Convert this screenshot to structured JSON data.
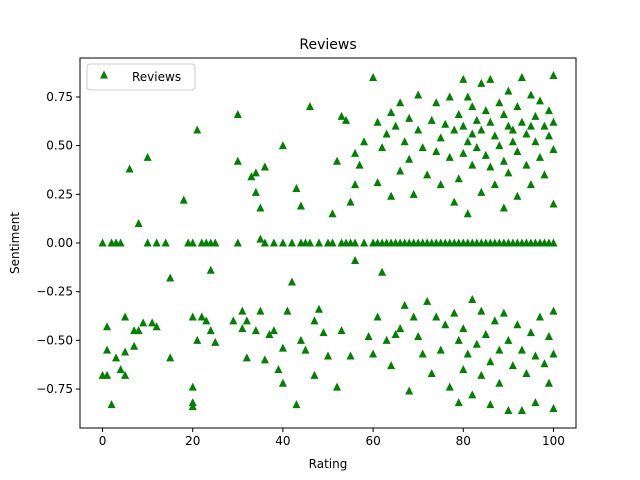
{
  "chart_data": {
    "type": "scatter",
    "title": "Reviews",
    "xlabel": "Rating",
    "ylabel": "Sentiment",
    "xlim": [
      -5,
      105
    ],
    "ylim": [
      -0.95,
      0.95
    ],
    "x_ticks": [
      0,
      20,
      40,
      60,
      80,
      100
    ],
    "x_tick_labels": [
      "0",
      "20",
      "40",
      "60",
      "80",
      "100"
    ],
    "y_ticks": [
      -0.75,
      -0.5,
      -0.25,
      0.0,
      0.25,
      0.5,
      0.75
    ],
    "y_tick_labels": [
      "−0.75",
      "−0.50",
      "−0.25",
      "0.00",
      "0.25",
      "0.50",
      "0.75"
    ],
    "grid": false,
    "legend": {
      "placement": "top-left",
      "entries": [
        "Reviews"
      ]
    },
    "marker": "triangle",
    "color": "#008000",
    "series": [
      {
        "name": "Reviews",
        "points": [
          [
            0,
            0
          ],
          [
            0,
            -0.68
          ],
          [
            1,
            -0.43
          ],
          [
            1,
            -0.55
          ],
          [
            1,
            -0.68
          ],
          [
            2,
            0
          ],
          [
            2,
            -0.83
          ],
          [
            3,
            0
          ],
          [
            3,
            -0.59
          ],
          [
            4,
            0
          ],
          [
            4,
            -0.65
          ],
          [
            5,
            -0.38
          ],
          [
            5,
            -0.56
          ],
          [
            5,
            -0.68
          ],
          [
            6,
            0.38
          ],
          [
            7,
            -0.45
          ],
          [
            7,
            -0.53
          ],
          [
            8,
            0.1
          ],
          [
            8,
            -0.45
          ],
          [
            9,
            -0.41
          ],
          [
            10,
            0.44
          ],
          [
            10,
            0
          ],
          [
            11,
            -0.41
          ],
          [
            12,
            -0.43
          ],
          [
            12,
            0
          ],
          [
            14,
            0
          ],
          [
            15,
            -0.18
          ],
          [
            15,
            -0.59
          ],
          [
            18,
            0.22
          ],
          [
            19,
            0
          ],
          [
            20,
            0
          ],
          [
            20,
            -0.38
          ],
          [
            20,
            -0.74
          ],
          [
            20,
            -0.82
          ],
          [
            20,
            -0.84
          ],
          [
            21,
            0.58
          ],
          [
            21,
            -0.5
          ],
          [
            22,
            -0.38
          ],
          [
            22,
            0
          ],
          [
            23,
            0
          ],
          [
            23,
            -0.4
          ],
          [
            24,
            -0.14
          ],
          [
            24,
            0
          ],
          [
            24,
            -0.45
          ],
          [
            25,
            0
          ],
          [
            25,
            -0.51
          ],
          [
            29,
            -0.4
          ],
          [
            30,
            0.66
          ],
          [
            30,
            0.42
          ],
          [
            30,
            0
          ],
          [
            31,
            -0.35
          ],
          [
            31,
            -0.44
          ],
          [
            32,
            -0.4
          ],
          [
            32,
            -0.59
          ],
          [
            33,
            0.34
          ],
          [
            34,
            0.26
          ],
          [
            34,
            0.36
          ],
          [
            34,
            -0.45
          ],
          [
            35,
            0.18
          ],
          [
            35,
            0.02
          ],
          [
            35,
            -0.35
          ],
          [
            36,
            0.39
          ],
          [
            36,
            0
          ],
          [
            36,
            -0.6
          ],
          [
            37,
            -0.47
          ],
          [
            38,
            0
          ],
          [
            38,
            -0.45
          ],
          [
            39,
            -0.65
          ],
          [
            40,
            0.5
          ],
          [
            40,
            0
          ],
          [
            40,
            -0.72
          ],
          [
            40,
            -0.54
          ],
          [
            41,
            -0.35
          ],
          [
            42,
            -0.2
          ],
          [
            42,
            0
          ],
          [
            43,
            0.28
          ],
          [
            43,
            -0.83
          ],
          [
            44,
            0.19
          ],
          [
            44,
            0
          ],
          [
            44,
            -0.5
          ],
          [
            45,
            0
          ],
          [
            45,
            -0.55
          ],
          [
            46,
            0.7
          ],
          [
            46,
            0
          ],
          [
            47,
            -0.4
          ],
          [
            47,
            -0.68
          ],
          [
            48,
            0
          ],
          [
            48,
            -0.34
          ],
          [
            49,
            -0.46
          ],
          [
            50,
            0
          ],
          [
            50,
            -0.58
          ],
          [
            51,
            0.15
          ],
          [
            51,
            0
          ],
          [
            52,
            0.42
          ],
          [
            52,
            -0.74
          ],
          [
            53,
            0.65
          ],
          [
            53,
            0
          ],
          [
            53,
            -0.45
          ],
          [
            54,
            0.63
          ],
          [
            54,
            0
          ],
          [
            55,
            0.21
          ],
          [
            55,
            0
          ],
          [
            55,
            -0.58
          ],
          [
            56,
            0.3
          ],
          [
            56,
            0.46
          ],
          [
            56,
            -0.09
          ],
          [
            56,
            0
          ],
          [
            57,
            0.4
          ],
          [
            58,
            0.52
          ],
          [
            58,
            0
          ],
          [
            59,
            -0.48
          ],
          [
            60,
            0.85
          ],
          [
            60,
            0
          ],
          [
            60,
            -0.57
          ],
          [
            61,
            0.62
          ],
          [
            61,
            0.31
          ],
          [
            61,
            0
          ],
          [
            61,
            -0.38
          ],
          [
            62,
            0.49
          ],
          [
            62,
            0
          ],
          [
            62,
            -0.15
          ],
          [
            63,
            0.56
          ],
          [
            63,
            0
          ],
          [
            63,
            -0.5
          ],
          [
            64,
            0.67
          ],
          [
            64,
            0.24
          ],
          [
            64,
            0
          ],
          [
            64,
            -0.63
          ],
          [
            65,
            0.6
          ],
          [
            65,
            0
          ],
          [
            65,
            -0.47
          ],
          [
            66,
            0.72
          ],
          [
            66,
            0.37
          ],
          [
            66,
            0
          ],
          [
            66,
            -0.44
          ],
          [
            67,
            0.52
          ],
          [
            67,
            0
          ],
          [
            67,
            -0.32
          ],
          [
            68,
            0.64
          ],
          [
            68,
            0.43
          ],
          [
            68,
            0
          ],
          [
            68,
            -0.76
          ],
          [
            69,
            0.25
          ],
          [
            69,
            0
          ],
          [
            69,
            -0.38
          ],
          [
            70,
            0.76
          ],
          [
            70,
            0.58
          ],
          [
            70,
            0
          ],
          [
            70,
            -0.48
          ],
          [
            71,
            0.49
          ],
          [
            71,
            0
          ],
          [
            71,
            -0.57
          ],
          [
            72,
            0.35
          ],
          [
            72,
            0
          ],
          [
            72,
            -0.3
          ],
          [
            73,
            0.63
          ],
          [
            73,
            0
          ],
          [
            73,
            -0.67
          ],
          [
            74,
            0.72
          ],
          [
            74,
            0.47
          ],
          [
            74,
            0
          ],
          [
            74,
            -0.38
          ],
          [
            75,
            0.54
          ],
          [
            75,
            0.3
          ],
          [
            75,
            0
          ],
          [
            75,
            -0.55
          ],
          [
            76,
            0.61
          ],
          [
            76,
            0
          ],
          [
            76,
            -0.42
          ],
          [
            77,
            0.75
          ],
          [
            77,
            0.44
          ],
          [
            77,
            0
          ],
          [
            77,
            -0.74
          ],
          [
            78,
            0.58
          ],
          [
            78,
            0.21
          ],
          [
            78,
            0
          ],
          [
            78,
            -0.36
          ],
          [
            79,
            0.66
          ],
          [
            79,
            0.33
          ],
          [
            79,
            0
          ],
          [
            79,
            -0.5
          ],
          [
            79,
            -0.82
          ],
          [
            80,
            0.84
          ],
          [
            80,
            0.6
          ],
          [
            80,
            0.46
          ],
          [
            80,
            0
          ],
          [
            80,
            -0.44
          ],
          [
            80,
            -0.65
          ],
          [
            81,
            0.75
          ],
          [
            81,
            0.52
          ],
          [
            81,
            0.15
          ],
          [
            81,
            0
          ],
          [
            81,
            -0.57
          ],
          [
            82,
            0.7
          ],
          [
            82,
            0.56
          ],
          [
            82,
            0.4
          ],
          [
            82,
            0
          ],
          [
            82,
            -0.29
          ],
          [
            82,
            -0.78
          ],
          [
            83,
            0.63
          ],
          [
            83,
            0.49
          ],
          [
            83,
            0
          ],
          [
            83,
            -0.52
          ],
          [
            84,
            0.82
          ],
          [
            84,
            0.58
          ],
          [
            84,
            0.26
          ],
          [
            84,
            0
          ],
          [
            84,
            -0.35
          ],
          [
            84,
            -0.68
          ],
          [
            85,
            0.68
          ],
          [
            85,
            0.45
          ],
          [
            85,
            0
          ],
          [
            85,
            -0.47
          ],
          [
            86,
            0.84
          ],
          [
            86,
            0.62
          ],
          [
            86,
            0.39
          ],
          [
            86,
            0
          ],
          [
            86,
            -0.61
          ],
          [
            86,
            -0.83
          ],
          [
            87,
            0.55
          ],
          [
            87,
            0.3
          ],
          [
            87,
            0
          ],
          [
            87,
            -0.4
          ],
          [
            88,
            0.72
          ],
          [
            88,
            0.5
          ],
          [
            88,
            0
          ],
          [
            88,
            -0.55
          ],
          [
            88,
            -0.72
          ],
          [
            89,
            0.66
          ],
          [
            89,
            0.42
          ],
          [
            89,
            0.18
          ],
          [
            89,
            0
          ],
          [
            89,
            -0.36
          ],
          [
            90,
            0.78
          ],
          [
            90,
            0.6
          ],
          [
            90,
            0.36
          ],
          [
            90,
            0
          ],
          [
            90,
            -0.5
          ],
          [
            90,
            -0.86
          ],
          [
            91,
            0.58
          ],
          [
            91,
            0.52
          ],
          [
            91,
            0
          ],
          [
            91,
            -0.63
          ],
          [
            92,
            0.7
          ],
          [
            92,
            0.47
          ],
          [
            92,
            0.24
          ],
          [
            92,
            0
          ],
          [
            92,
            -0.42
          ],
          [
            93,
            0.85
          ],
          [
            93,
            0.62
          ],
          [
            93,
            0
          ],
          [
            93,
            -0.55
          ],
          [
            93,
            -0.86
          ],
          [
            94,
            0.56
          ],
          [
            94,
            0.4
          ],
          [
            94,
            0
          ],
          [
            94,
            -0.67
          ],
          [
            95,
            0.76
          ],
          [
            95,
            0.6
          ],
          [
            95,
            0.3
          ],
          [
            95,
            0
          ],
          [
            95,
            -0.46
          ],
          [
            96,
            0.65
          ],
          [
            96,
            0.52
          ],
          [
            96,
            0
          ],
          [
            96,
            -0.58
          ],
          [
            96,
            -0.82
          ],
          [
            97,
            0.73
          ],
          [
            97,
            0.44
          ],
          [
            97,
            0
          ],
          [
            97,
            -0.38
          ],
          [
            98,
            0.6
          ],
          [
            98,
            0.35
          ],
          [
            98,
            0
          ],
          [
            98,
            -0.62
          ],
          [
            99,
            0.68
          ],
          [
            99,
            0.55
          ],
          [
            99,
            0
          ],
          [
            99,
            -0.48
          ],
          [
            99,
            -0.72
          ],
          [
            100,
            0.86
          ],
          [
            100,
            0.62
          ],
          [
            100,
            0.48
          ],
          [
            100,
            0.2
          ],
          [
            100,
            0
          ],
          [
            100,
            -0.35
          ],
          [
            100,
            -0.57
          ],
          [
            100,
            -0.85
          ]
        ]
      }
    ]
  }
}
